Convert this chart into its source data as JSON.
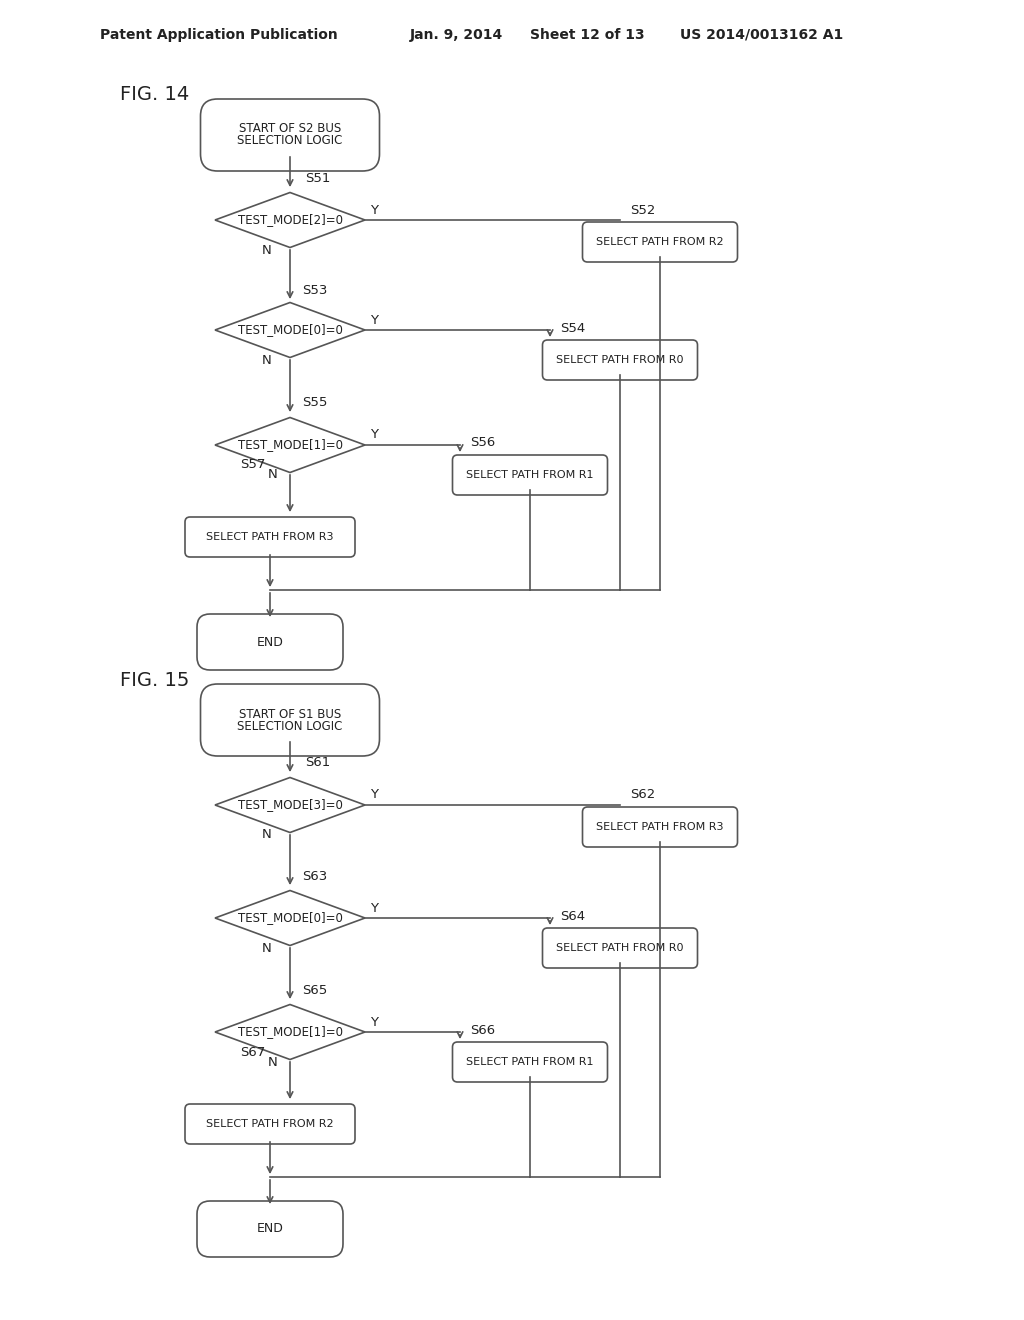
{
  "bg_color": "#ffffff",
  "header_text": "Patent Application Publication",
  "header_date": "Jan. 9, 2014",
  "header_sheet": "Sheet 12 of 13",
  "header_patent": "US 2014/0013162 A1",
  "fig14_label": "FIG. 14",
  "fig15_label": "FIG. 15",
  "line_color": "#555555",
  "box_color": "#ffffff",
  "text_color": "#222222"
}
